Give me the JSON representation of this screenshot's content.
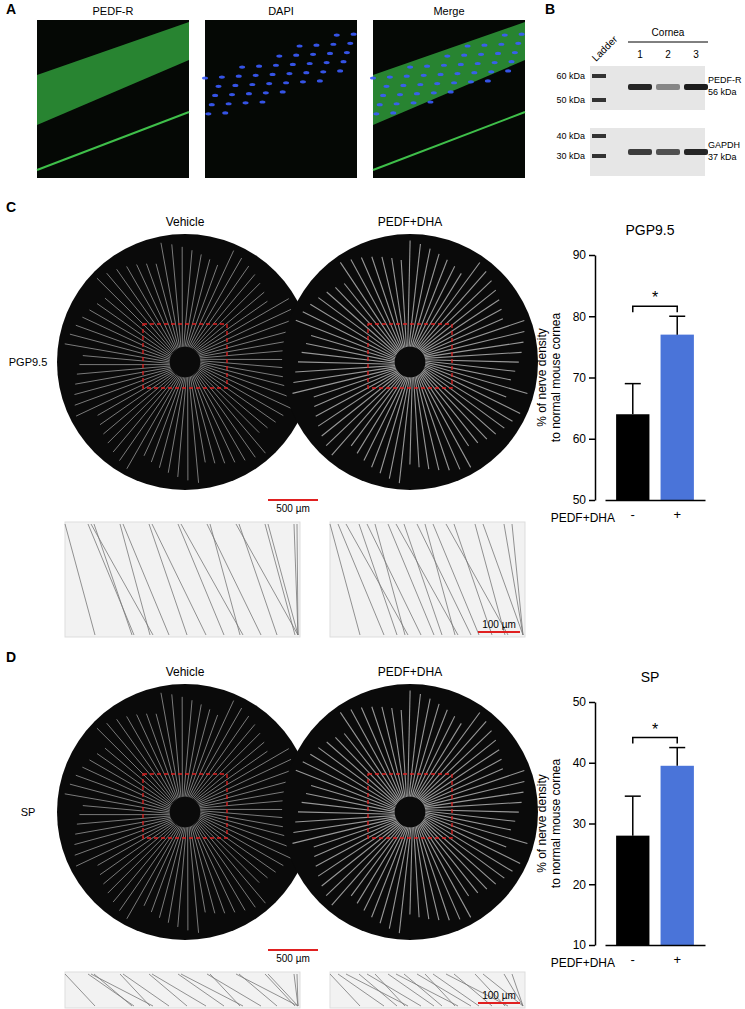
{
  "panel_a": {
    "label": "A",
    "image_titles": [
      "PEDF-R",
      "DAPI",
      "Merge"
    ]
  },
  "panel_b": {
    "label": "B",
    "ladder": "Ladder",
    "group": "Cornea",
    "lanes": [
      "1",
      "2",
      "3"
    ],
    "blots": [
      {
        "name": "PEDF-R",
        "size": "56 kDa",
        "markers": [
          "60 kDa",
          "50 kDa"
        ]
      },
      {
        "name": "GAPDH",
        "size": "37 kDa",
        "markers": [
          "40 kDa",
          "30 kDa"
        ]
      }
    ]
  },
  "panel_c": {
    "label": "C",
    "conditions": [
      "Vehicle",
      "PEDF+DHA"
    ],
    "stain": "PGP9.5",
    "scale_bars": [
      "500 µm",
      "100 µm"
    ]
  },
  "panel_d": {
    "label": "D",
    "conditions": [
      "Vehicle",
      "PEDF+DHA"
    ],
    "stain": "SP",
    "scale_bars": [
      "500 µm",
      "100 µm"
    ]
  },
  "chart_data": [
    {
      "type": "bar",
      "title": "PGP9.5",
      "ylabel": [
        "% of nerve density",
        "to normal mouse cornea"
      ],
      "xlabel": "PEDF+DHA",
      "categories": [
        "-",
        "+"
      ],
      "values": [
        64,
        77
      ],
      "errors": [
        5,
        3
      ],
      "colors": [
        "#000000",
        "#4a74d9"
      ],
      "ylim": [
        50,
        90
      ],
      "yticks": [
        50,
        60,
        70,
        80,
        90
      ],
      "grid": false,
      "annotations": [
        "*"
      ]
    },
    {
      "type": "bar",
      "title": "SP",
      "ylabel": [
        "% of nerve density",
        "to normal mouse cornea"
      ],
      "xlabel": "PEDF+DHA",
      "categories": [
        "-",
        "+"
      ],
      "values": [
        28,
        39.5
      ],
      "errors": [
        6.5,
        3
      ],
      "colors": [
        "#000000",
        "#4a74d9"
      ],
      "ylim": [
        10,
        50
      ],
      "yticks": [
        10,
        20,
        30,
        40,
        50
      ],
      "grid": false,
      "annotations": [
        "*"
      ]
    }
  ]
}
